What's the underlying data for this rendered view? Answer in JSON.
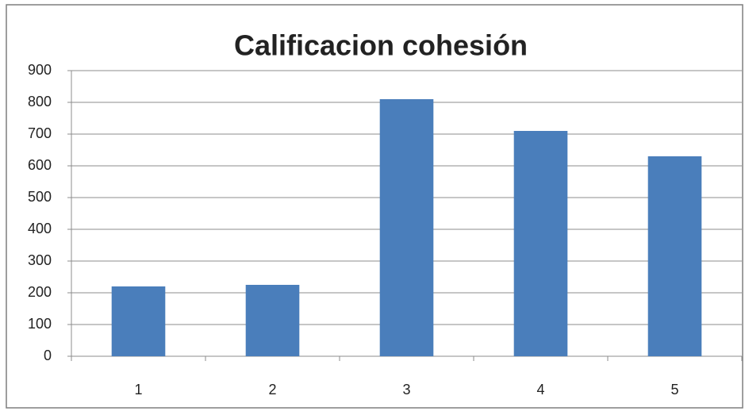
{
  "chart_data": {
    "type": "bar",
    "title": "Calificacion cohesión",
    "categories": [
      "1",
      "2",
      "3",
      "4",
      "5"
    ],
    "values": [
      220,
      225,
      810,
      710,
      630
    ],
    "color": "#4a7ebb",
    "ylim": [
      0,
      900
    ],
    "yticks": [
      0,
      100,
      200,
      300,
      400,
      500,
      600,
      700,
      800,
      900
    ],
    "grid": true
  }
}
